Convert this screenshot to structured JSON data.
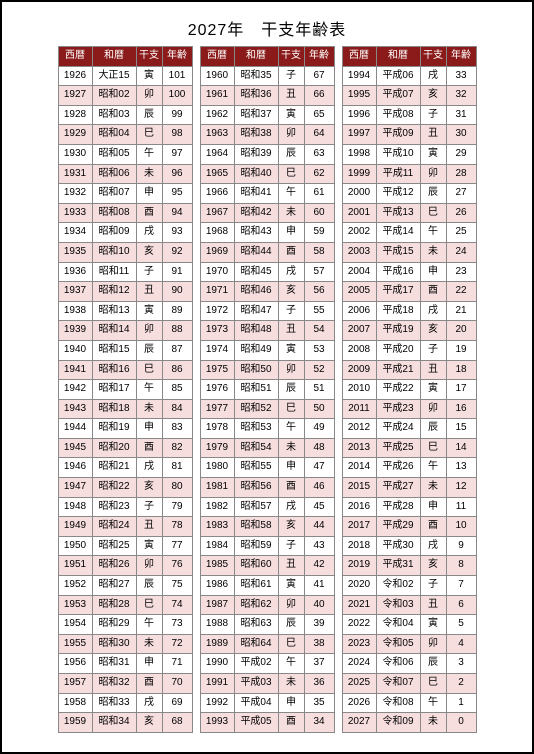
{
  "title": "2027年　干支年齢表",
  "headers": {
    "seireki": "西暦",
    "wareki": "和暦",
    "eto": "干支",
    "age": "年齢"
  },
  "colors": {
    "header_bg": "#8b1a1a",
    "header_fg": "#ffffff",
    "row_odd": "#f7dede",
    "row_even": "#ffffff",
    "border": "#888888"
  },
  "tables": [
    [
      {
        "s": "1926",
        "w": "大正15",
        "e": "寅",
        "a": "101"
      },
      {
        "s": "1927",
        "w": "昭和02",
        "e": "卯",
        "a": "100"
      },
      {
        "s": "1928",
        "w": "昭和03",
        "e": "辰",
        "a": "99"
      },
      {
        "s": "1929",
        "w": "昭和04",
        "e": "巳",
        "a": "98"
      },
      {
        "s": "1930",
        "w": "昭和05",
        "e": "午",
        "a": "97"
      },
      {
        "s": "1931",
        "w": "昭和06",
        "e": "未",
        "a": "96"
      },
      {
        "s": "1932",
        "w": "昭和07",
        "e": "申",
        "a": "95"
      },
      {
        "s": "1933",
        "w": "昭和08",
        "e": "酉",
        "a": "94"
      },
      {
        "s": "1934",
        "w": "昭和09",
        "e": "戌",
        "a": "93"
      },
      {
        "s": "1935",
        "w": "昭和10",
        "e": "亥",
        "a": "92"
      },
      {
        "s": "1936",
        "w": "昭和11",
        "e": "子",
        "a": "91"
      },
      {
        "s": "1937",
        "w": "昭和12",
        "e": "丑",
        "a": "90"
      },
      {
        "s": "1938",
        "w": "昭和13",
        "e": "寅",
        "a": "89"
      },
      {
        "s": "1939",
        "w": "昭和14",
        "e": "卯",
        "a": "88"
      },
      {
        "s": "1940",
        "w": "昭和15",
        "e": "辰",
        "a": "87"
      },
      {
        "s": "1941",
        "w": "昭和16",
        "e": "巳",
        "a": "86"
      },
      {
        "s": "1942",
        "w": "昭和17",
        "e": "午",
        "a": "85"
      },
      {
        "s": "1943",
        "w": "昭和18",
        "e": "未",
        "a": "84"
      },
      {
        "s": "1944",
        "w": "昭和19",
        "e": "申",
        "a": "83"
      },
      {
        "s": "1945",
        "w": "昭和20",
        "e": "酉",
        "a": "82"
      },
      {
        "s": "1946",
        "w": "昭和21",
        "e": "戌",
        "a": "81"
      },
      {
        "s": "1947",
        "w": "昭和22",
        "e": "亥",
        "a": "80"
      },
      {
        "s": "1948",
        "w": "昭和23",
        "e": "子",
        "a": "79"
      },
      {
        "s": "1949",
        "w": "昭和24",
        "e": "丑",
        "a": "78"
      },
      {
        "s": "1950",
        "w": "昭和25",
        "e": "寅",
        "a": "77"
      },
      {
        "s": "1951",
        "w": "昭和26",
        "e": "卯",
        "a": "76"
      },
      {
        "s": "1952",
        "w": "昭和27",
        "e": "辰",
        "a": "75"
      },
      {
        "s": "1953",
        "w": "昭和28",
        "e": "巳",
        "a": "74"
      },
      {
        "s": "1954",
        "w": "昭和29",
        "e": "午",
        "a": "73"
      },
      {
        "s": "1955",
        "w": "昭和30",
        "e": "未",
        "a": "72"
      },
      {
        "s": "1956",
        "w": "昭和31",
        "e": "申",
        "a": "71"
      },
      {
        "s": "1957",
        "w": "昭和32",
        "e": "酉",
        "a": "70"
      },
      {
        "s": "1958",
        "w": "昭和33",
        "e": "戌",
        "a": "69"
      },
      {
        "s": "1959",
        "w": "昭和34",
        "e": "亥",
        "a": "68"
      }
    ],
    [
      {
        "s": "1960",
        "w": "昭和35",
        "e": "子",
        "a": "67"
      },
      {
        "s": "1961",
        "w": "昭和36",
        "e": "丑",
        "a": "66"
      },
      {
        "s": "1962",
        "w": "昭和37",
        "e": "寅",
        "a": "65"
      },
      {
        "s": "1963",
        "w": "昭和38",
        "e": "卯",
        "a": "64"
      },
      {
        "s": "1964",
        "w": "昭和39",
        "e": "辰",
        "a": "63"
      },
      {
        "s": "1965",
        "w": "昭和40",
        "e": "巳",
        "a": "62"
      },
      {
        "s": "1966",
        "w": "昭和41",
        "e": "午",
        "a": "61"
      },
      {
        "s": "1967",
        "w": "昭和42",
        "e": "未",
        "a": "60"
      },
      {
        "s": "1968",
        "w": "昭和43",
        "e": "申",
        "a": "59"
      },
      {
        "s": "1969",
        "w": "昭和44",
        "e": "酉",
        "a": "58"
      },
      {
        "s": "1970",
        "w": "昭和45",
        "e": "戌",
        "a": "57"
      },
      {
        "s": "1971",
        "w": "昭和46",
        "e": "亥",
        "a": "56"
      },
      {
        "s": "1972",
        "w": "昭和47",
        "e": "子",
        "a": "55"
      },
      {
        "s": "1973",
        "w": "昭和48",
        "e": "丑",
        "a": "54"
      },
      {
        "s": "1974",
        "w": "昭和49",
        "e": "寅",
        "a": "53"
      },
      {
        "s": "1975",
        "w": "昭和50",
        "e": "卯",
        "a": "52"
      },
      {
        "s": "1976",
        "w": "昭和51",
        "e": "辰",
        "a": "51"
      },
      {
        "s": "1977",
        "w": "昭和52",
        "e": "巳",
        "a": "50"
      },
      {
        "s": "1978",
        "w": "昭和53",
        "e": "午",
        "a": "49"
      },
      {
        "s": "1979",
        "w": "昭和54",
        "e": "未",
        "a": "48"
      },
      {
        "s": "1980",
        "w": "昭和55",
        "e": "申",
        "a": "47"
      },
      {
        "s": "1981",
        "w": "昭和56",
        "e": "酉",
        "a": "46"
      },
      {
        "s": "1982",
        "w": "昭和57",
        "e": "戌",
        "a": "45"
      },
      {
        "s": "1983",
        "w": "昭和58",
        "e": "亥",
        "a": "44"
      },
      {
        "s": "1984",
        "w": "昭和59",
        "e": "子",
        "a": "43"
      },
      {
        "s": "1985",
        "w": "昭和60",
        "e": "丑",
        "a": "42"
      },
      {
        "s": "1986",
        "w": "昭和61",
        "e": "寅",
        "a": "41"
      },
      {
        "s": "1987",
        "w": "昭和62",
        "e": "卯",
        "a": "40"
      },
      {
        "s": "1988",
        "w": "昭和63",
        "e": "辰",
        "a": "39"
      },
      {
        "s": "1989",
        "w": "昭和64",
        "e": "巳",
        "a": "38"
      },
      {
        "s": "1990",
        "w": "平成02",
        "e": "午",
        "a": "37"
      },
      {
        "s": "1991",
        "w": "平成03",
        "e": "未",
        "a": "36"
      },
      {
        "s": "1992",
        "w": "平成04",
        "e": "申",
        "a": "35"
      },
      {
        "s": "1993",
        "w": "平成05",
        "e": "酉",
        "a": "34"
      }
    ],
    [
      {
        "s": "1994",
        "w": "平成06",
        "e": "戌",
        "a": "33"
      },
      {
        "s": "1995",
        "w": "平成07",
        "e": "亥",
        "a": "32"
      },
      {
        "s": "1996",
        "w": "平成08",
        "e": "子",
        "a": "31"
      },
      {
        "s": "1997",
        "w": "平成09",
        "e": "丑",
        "a": "30"
      },
      {
        "s": "1998",
        "w": "平成10",
        "e": "寅",
        "a": "29"
      },
      {
        "s": "1999",
        "w": "平成11",
        "e": "卯",
        "a": "28"
      },
      {
        "s": "2000",
        "w": "平成12",
        "e": "辰",
        "a": "27"
      },
      {
        "s": "2001",
        "w": "平成13",
        "e": "巳",
        "a": "26"
      },
      {
        "s": "2002",
        "w": "平成14",
        "e": "午",
        "a": "25"
      },
      {
        "s": "2003",
        "w": "平成15",
        "e": "未",
        "a": "24"
      },
      {
        "s": "2004",
        "w": "平成16",
        "e": "申",
        "a": "23"
      },
      {
        "s": "2005",
        "w": "平成17",
        "e": "酉",
        "a": "22"
      },
      {
        "s": "2006",
        "w": "平成18",
        "e": "戌",
        "a": "21"
      },
      {
        "s": "2007",
        "w": "平成19",
        "e": "亥",
        "a": "20"
      },
      {
        "s": "2008",
        "w": "平成20",
        "e": "子",
        "a": "19"
      },
      {
        "s": "2009",
        "w": "平成21",
        "e": "丑",
        "a": "18"
      },
      {
        "s": "2010",
        "w": "平成22",
        "e": "寅",
        "a": "17"
      },
      {
        "s": "2011",
        "w": "平成23",
        "e": "卯",
        "a": "16"
      },
      {
        "s": "2012",
        "w": "平成24",
        "e": "辰",
        "a": "15"
      },
      {
        "s": "2013",
        "w": "平成25",
        "e": "巳",
        "a": "14"
      },
      {
        "s": "2014",
        "w": "平成26",
        "e": "午",
        "a": "13"
      },
      {
        "s": "2015",
        "w": "平成27",
        "e": "未",
        "a": "12"
      },
      {
        "s": "2016",
        "w": "平成28",
        "e": "申",
        "a": "11"
      },
      {
        "s": "2017",
        "w": "平成29",
        "e": "酉",
        "a": "10"
      },
      {
        "s": "2018",
        "w": "平成30",
        "e": "戌",
        "a": "9"
      },
      {
        "s": "2019",
        "w": "平成31",
        "e": "亥",
        "a": "8"
      },
      {
        "s": "2020",
        "w": "令和02",
        "e": "子",
        "a": "7"
      },
      {
        "s": "2021",
        "w": "令和03",
        "e": "丑",
        "a": "6"
      },
      {
        "s": "2022",
        "w": "令和04",
        "e": "寅",
        "a": "5"
      },
      {
        "s": "2023",
        "w": "令和05",
        "e": "卯",
        "a": "4"
      },
      {
        "s": "2024",
        "w": "令和06",
        "e": "辰",
        "a": "3"
      },
      {
        "s": "2025",
        "w": "令和07",
        "e": "巳",
        "a": "2"
      },
      {
        "s": "2026",
        "w": "令和08",
        "e": "午",
        "a": "1"
      },
      {
        "s": "2027",
        "w": "令和09",
        "e": "未",
        "a": "0"
      }
    ]
  ]
}
